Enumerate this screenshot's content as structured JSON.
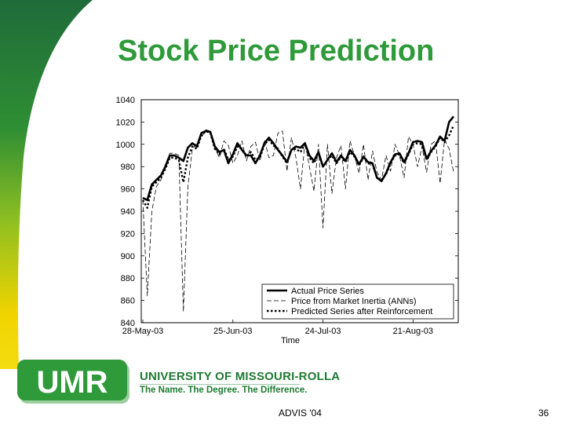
{
  "slide": {
    "title": "Stock Price Prediction",
    "footer_center": "ADVIS '04",
    "page_number": "36",
    "logo_text": "UMR",
    "university_name": "UNIVERSITY OF MISSOURI-ROLLA",
    "tagline": "The Name. The Degree. The Difference.",
    "colors": {
      "title": "#2e9a3a",
      "swoosh_dark": "#1f6b3a",
      "swoosh_light": "#f0d400",
      "logo_green": "#2e9a3a"
    }
  },
  "chart_data": {
    "type": "line",
    "title": "",
    "xlabel": "Time",
    "ylabel": "",
    "ylim": [
      840,
      1040
    ],
    "yticks": [
      840,
      860,
      880,
      900,
      920,
      940,
      960,
      980,
      1000,
      1020,
      1040
    ],
    "ytick_labels": [
      "840",
      "860",
      "880",
      "900",
      "920",
      "940",
      "960",
      "980",
      "1000",
      "1020",
      "1040"
    ],
    "xtick_labels": [
      "28-May-03",
      "25-Jun-03",
      "24-Jul-03",
      "21-Aug-03"
    ],
    "grid": false,
    "legend": "bottom-right",
    "x": [
      "28-May-03",
      "29-May-03",
      "30-May-03",
      "2-Jun-03",
      "3-Jun-03",
      "4-Jun-03",
      "5-Jun-03",
      "6-Jun-03",
      "9-Jun-03",
      "10-Jun-03",
      "11-Jun-03",
      "12-Jun-03",
      "13-Jun-03",
      "16-Jun-03",
      "17-Jun-03",
      "18-Jun-03",
      "19-Jun-03",
      "20-Jun-03",
      "23-Jun-03",
      "24-Jun-03",
      "25-Jun-03",
      "26-Jun-03",
      "27-Jun-03",
      "30-Jun-03",
      "1-Jul-03",
      "2-Jul-03",
      "3-Jul-03",
      "7-Jul-03",
      "8-Jul-03",
      "9-Jul-03",
      "10-Jul-03",
      "11-Jul-03",
      "14-Jul-03",
      "15-Jul-03",
      "16-Jul-03",
      "17-Jul-03",
      "18-Jul-03",
      "21-Jul-03",
      "22-Jul-03",
      "23-Jul-03",
      "24-Jul-03",
      "25-Jul-03",
      "28-Jul-03",
      "29-Jul-03",
      "30-Jul-03",
      "31-Jul-03",
      "1-Aug-03",
      "4-Aug-03",
      "5-Aug-03",
      "6-Aug-03",
      "7-Aug-03",
      "8-Aug-03",
      "11-Aug-03",
      "12-Aug-03",
      "13-Aug-03",
      "14-Aug-03",
      "15-Aug-03",
      "18-Aug-03",
      "19-Aug-03",
      "20-Aug-03",
      "21-Aug-03",
      "22-Aug-03",
      "25-Aug-03",
      "26-Aug-03",
      "27-Aug-03",
      "28-Aug-03",
      "29-Aug-03",
      "2-Sep-03",
      "3-Sep-03",
      "4-Sep-03"
    ],
    "series": [
      {
        "name": "Actual Price Series",
        "style": "solid-thick",
        "values": [
          952,
          950,
          964,
          968,
          972,
          980,
          990,
          990,
          988,
          985,
          997,
          1001,
          998,
          1010,
          1012,
          1011,
          998,
          993,
          995,
          983,
          991,
          1001,
          995,
          990,
          990,
          983,
          990,
          1001,
          1006,
          1001,
          995,
          990,
          984,
          995,
          998,
          997,
          1001,
          990,
          985,
          993,
          980,
          986,
          992,
          984,
          990,
          985,
          995,
          990,
          982,
          989,
          984,
          983,
          970,
          967,
          974,
          984,
          991,
          992,
          984,
          992,
          1002,
          1003,
          1002,
          987,
          994,
          999,
          1007,
          1003,
          1020,
          1025
        ]
      },
      {
        "name": "Price from Market Inertia (ANNs)",
        "style": "thin-dashed",
        "values": [
          950,
          864,
          940,
          962,
          968,
          982,
          992,
          992,
          990,
          850,
          962,
          996,
          1001,
          1006,
          1013,
          1012,
          997,
          988,
          1003,
          999,
          983,
          990,
          1003,
          985,
          998,
          1002,
          985,
          1004,
          988,
          990,
          1010,
          1012,
          976,
          1006,
          988,
          960,
          1002,
          980,
          958,
          1000,
          925,
          1000,
          956,
          988,
          999,
          960,
          1003,
          990,
          974,
          1000,
          968,
          994,
          975,
          968,
          990,
          976,
          1000,
          990,
          970,
          1007,
          1000,
          980,
          998,
          975,
          1000,
          1003,
          965,
          1004,
          996,
          975
        ]
      },
      {
        "name": "Predicted Series after Reinforcement",
        "style": "dotted",
        "values": [
          950,
          943,
          962,
          966,
          970,
          978,
          988,
          988,
          986,
          966,
          988,
          998,
          996,
          1008,
          1012,
          1010,
          996,
          991,
          996,
          986,
          989,
          998,
          996,
          989,
          993,
          986,
          988,
          1000,
          1004,
          999,
          996,
          989,
          983,
          995,
          996,
          993,
          1000,
          988,
          983,
          992,
          980,
          986,
          990,
          983,
          989,
          984,
          993,
          989,
          981,
          988,
          983,
          982,
          970,
          968,
          973,
          983,
          990,
          991,
          983,
          991,
          1000,
          1001,
          1000,
          986,
          993,
          998,
          1006,
          1002,
          1008,
          1017
        ]
      }
    ]
  }
}
